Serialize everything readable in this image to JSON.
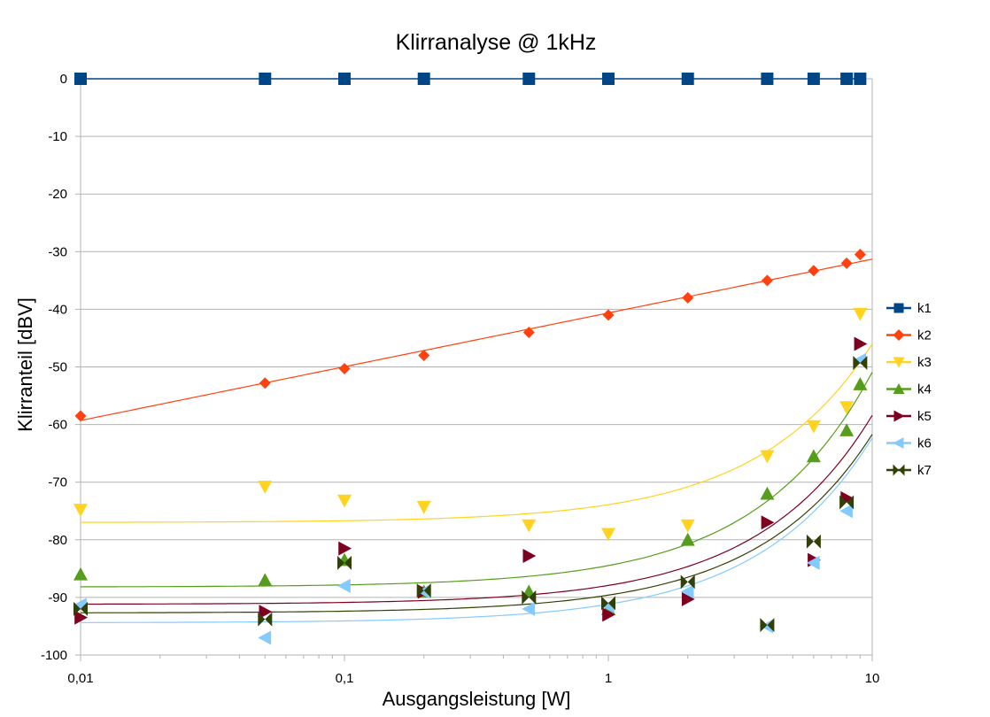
{
  "chart_data": {
    "type": "scatter",
    "title": "Klirranalyse @ 1kHz",
    "xlabel": "Ausgangsleistung [W]",
    "ylabel": "Klirranteil [dBV]",
    "x_scale": "log",
    "xlim": [
      0.01,
      10
    ],
    "ylim": [
      -100,
      0
    ],
    "x_ticks": [
      {
        "value": 0.01,
        "label": "0,01"
      },
      {
        "value": 0.1,
        "label": "0,1"
      },
      {
        "value": 1,
        "label": "1"
      },
      {
        "value": 10,
        "label": "10"
      }
    ],
    "y_ticks": [
      {
        "value": 0,
        "label": "0"
      },
      {
        "value": -10,
        "label": "-10"
      },
      {
        "value": -20,
        "label": "-20"
      },
      {
        "value": -30,
        "label": "-30"
      },
      {
        "value": -40,
        "label": "-40"
      },
      {
        "value": -50,
        "label": "-50"
      },
      {
        "value": -60,
        "label": "-60"
      },
      {
        "value": -70,
        "label": "-70"
      },
      {
        "value": -80,
        "label": "-80"
      },
      {
        "value": -90,
        "label": "-90"
      },
      {
        "value": -100,
        "label": "-100"
      }
    ],
    "grid": "horizontal",
    "legend_position": "right",
    "series": [
      {
        "name": "k1",
        "color": "#004586",
        "marker": "square",
        "line": "connected",
        "points": [
          [
            0.01,
            0
          ],
          [
            0.05,
            0
          ],
          [
            0.1,
            0
          ],
          [
            0.2,
            0
          ],
          [
            0.5,
            0
          ],
          [
            1,
            0
          ],
          [
            2,
            0
          ],
          [
            4,
            0
          ],
          [
            6,
            0
          ],
          [
            8,
            0
          ],
          [
            9,
            0
          ]
        ]
      },
      {
        "name": "k2",
        "color": "#ff420e",
        "marker": "diamond",
        "line": "fit",
        "fit": {
          "kind": "log",
          "x0": 0.01,
          "y0": -59.3,
          "x1": 10,
          "y1": -31.3
        },
        "points": [
          [
            0.01,
            -58.5
          ],
          [
            0.05,
            -52.8
          ],
          [
            0.1,
            -50.3
          ],
          [
            0.2,
            -48.0
          ],
          [
            0.5,
            -44.0
          ],
          [
            1,
            -41.0
          ],
          [
            2,
            -38.0
          ],
          [
            4,
            -35.0
          ],
          [
            6,
            -33.3
          ],
          [
            8,
            -32.0
          ],
          [
            9,
            -30.5
          ]
        ]
      },
      {
        "name": "k3",
        "color": "#ffd320",
        "marker": "triangle-down",
        "line": "fit",
        "fit": {
          "kind": "linear",
          "a": -77.0,
          "b": 3.1
        },
        "points": [
          [
            0.01,
            -74.8
          ],
          [
            0.05,
            -70.8
          ],
          [
            0.1,
            -73.2
          ],
          [
            0.2,
            -74.3
          ],
          [
            0.5,
            -77.5
          ],
          [
            1,
            -79.0
          ],
          [
            2,
            -77.5
          ],
          [
            4,
            -65.5
          ],
          [
            6,
            -60.3
          ],
          [
            8,
            -57.0
          ],
          [
            9,
            -40.8
          ]
        ]
      },
      {
        "name": "k4",
        "color": "#579d1c",
        "marker": "triangle-up",
        "line": "fit",
        "fit": {
          "kind": "linear",
          "a": -88.2,
          "b": 3.73
        },
        "points": [
          [
            0.01,
            -86.0
          ],
          [
            0.05,
            -87.0
          ],
          [
            0.1,
            -83.5
          ],
          [
            0.2,
            -89.0
          ],
          [
            0.5,
            -89.0
          ],
          [
            1,
            -92.0
          ],
          [
            2,
            -80.0
          ],
          [
            4,
            -72.0
          ],
          [
            6,
            -65.5
          ],
          [
            8,
            -61.0
          ],
          [
            9,
            -53.0
          ]
        ]
      },
      {
        "name": "k5",
        "color": "#7e0021",
        "marker": "triangle-right",
        "line": "fit",
        "fit": {
          "kind": "linear",
          "a": -91.2,
          "b": 3.28
        },
        "points": [
          [
            0.01,
            -93.5
          ],
          [
            0.05,
            -92.5
          ],
          [
            0.1,
            -81.5
          ],
          [
            0.2,
            -89.0
          ],
          [
            0.5,
            -82.8
          ],
          [
            1,
            -93.0
          ],
          [
            2,
            -90.3
          ],
          [
            4,
            -77.0
          ],
          [
            6,
            -83.5
          ],
          [
            8,
            -72.8
          ],
          [
            9,
            -46.0
          ]
        ]
      },
      {
        "name": "k6",
        "color": "#83caff",
        "marker": "triangle-left",
        "line": "fit",
        "fit": {
          "kind": "linear",
          "a": -94.4,
          "b": 3.21
        },
        "points": [
          [
            0.01,
            -91.3
          ],
          [
            0.05,
            -97.0
          ],
          [
            0.1,
            -88.0
          ],
          [
            0.2,
            -89.0
          ],
          [
            0.5,
            -92.0
          ],
          [
            1,
            -91.5
          ],
          [
            2,
            -89.0
          ],
          [
            4,
            -95.0
          ],
          [
            6,
            -84.0
          ],
          [
            8,
            -75.0
          ],
          [
            9,
            -48.8
          ]
        ]
      },
      {
        "name": "k7",
        "color": "#314004",
        "marker": "bowtie",
        "line": "fit",
        "fit": {
          "kind": "linear",
          "a": -92.7,
          "b": 3.1
        },
        "points": [
          [
            0.01,
            -92.0
          ],
          [
            0.05,
            -93.8
          ],
          [
            0.1,
            -84.0
          ],
          [
            0.2,
            -88.8
          ],
          [
            0.5,
            -90.0
          ],
          [
            1,
            -91.0
          ],
          [
            2,
            -87.3
          ],
          [
            4,
            -94.8
          ],
          [
            6,
            -80.3
          ],
          [
            8,
            -73.5
          ],
          [
            9,
            -49.3
          ]
        ]
      }
    ]
  }
}
